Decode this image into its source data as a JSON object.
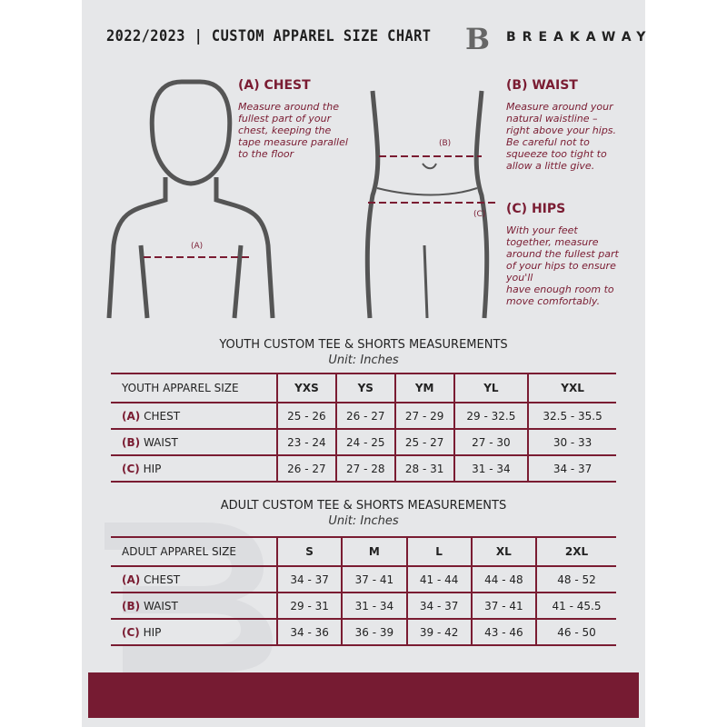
{
  "header": {
    "title": "2022/2023  |  CUSTOM APPAREL SIZE CHART",
    "brand": "BREAKAWAY",
    "logo_letter": "B"
  },
  "chest": {
    "heading": "(A) CHEST",
    "label": "(A)",
    "text": [
      "Measure around the",
      "fullest part of your",
      "chest, keeping the",
      "tape measure parallel",
      "to the floor"
    ]
  },
  "waist": {
    "heading": "(B) WAIST",
    "label": "(B)",
    "text": [
      "Measure around your",
      "natural waistline –",
      "right above your hips.",
      "Be careful not to",
      "squeeze too tight to",
      "allow a little give."
    ]
  },
  "hips": {
    "heading": "(C) HIPS",
    "label": "(C)",
    "text": [
      "With your feet",
      "together, measure",
      "around the fullest part",
      "of your hips to ensure",
      "you'll",
      "have enough room to",
      "move comfortably."
    ]
  },
  "youth": {
    "title": "YOUTH CUSTOM TEE & SHORTS MEASUREMENTS",
    "unit": "Unit: Inches",
    "header": [
      "YOUTH APPAREL SIZE",
      "YXS",
      "YS",
      "YM",
      "YL",
      "YXL"
    ],
    "rows": [
      {
        "letter": "(A)",
        "name": "CHEST",
        "values": [
          "25 - 26",
          "26 - 27",
          "27 - 29",
          "29 - 32.5",
          "32.5 - 35.5"
        ]
      },
      {
        "letter": "(B)",
        "name": "WAIST",
        "values": [
          "23 - 24",
          "24 - 25",
          "25 - 27",
          "27 - 30",
          "30 - 33"
        ]
      },
      {
        "letter": "(C)",
        "name": "HIP",
        "values": [
          "26 - 27",
          "27 - 28",
          "28 - 31",
          "31 - 34",
          "34 - 37"
        ]
      }
    ]
  },
  "adult": {
    "title": "ADULT CUSTOM TEE & SHORTS MEASUREMENTS",
    "unit": "Unit: Inches",
    "header": [
      "ADULT APPAREL SIZE",
      "S",
      "M",
      "L",
      "XL",
      "2XL"
    ],
    "rows": [
      {
        "letter": "(A)",
        "name": "CHEST",
        "values": [
          "34 - 37",
          "37 - 41",
          "41 - 44",
          "44 - 48",
          "48 - 52"
        ]
      },
      {
        "letter": "(B)",
        "name": "WAIST",
        "values": [
          "29 - 31",
          "31 - 34",
          "34 - 37",
          "37 - 41",
          "41 - 45.5"
        ]
      },
      {
        "letter": "(C)",
        "name": "HIP",
        "values": [
          "34 - 36",
          "36 - 39",
          "39 - 42",
          "43 - 46",
          "46 - 50"
        ]
      }
    ]
  },
  "colors": {
    "accent": "#7a1c32",
    "background": "#e6e7e9"
  }
}
